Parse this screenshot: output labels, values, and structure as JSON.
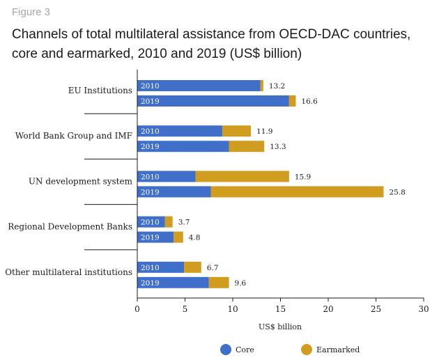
{
  "figure_label": "Figure 3",
  "title_line1": "Channels of total multilateral assistance from OECD-DAC countries,",
  "title_line2": "core and earmarked, 2010 and 2019 (US$ billion)",
  "colors": {
    "core": "#3f6fc9",
    "earmarked": "#d19d20",
    "axis": "#1a1a1a",
    "bar_text": "#ffffff"
  },
  "chart_data": {
    "type": "bar",
    "orientation": "horizontal",
    "stacked": true,
    "xlabel": "US$ billion",
    "xlim": [
      0,
      30
    ],
    "xticks": [
      0,
      5,
      10,
      15,
      20,
      25,
      30
    ],
    "grid": false,
    "legend_position": "bottom",
    "series_names": [
      "Core",
      "Earmarked"
    ],
    "categories": [
      {
        "name": "EU Institutions",
        "bars": [
          {
            "year": "2010",
            "core": 12.9,
            "earmarked": 0.3,
            "total_label": "13.2"
          },
          {
            "year": "2019",
            "core": 15.9,
            "earmarked": 0.7,
            "total_label": "16.6"
          }
        ]
      },
      {
        "name": "World Bank Group and IMF",
        "bars": [
          {
            "year": "2010",
            "core": 8.9,
            "earmarked": 3.0,
            "total_label": "11.9"
          },
          {
            "year": "2019",
            "core": 9.6,
            "earmarked": 3.7,
            "total_label": "13.3"
          }
        ]
      },
      {
        "name": "UN development system",
        "bars": [
          {
            "year": "2010",
            "core": 6.1,
            "earmarked": 9.8,
            "total_label": "15.9"
          },
          {
            "year": "2019",
            "core": 7.7,
            "earmarked": 18.1,
            "total_label": "25.8"
          }
        ]
      },
      {
        "name": "Regional Development Banks",
        "bars": [
          {
            "year": "2010",
            "core": 2.9,
            "earmarked": 0.8,
            "total_label": "3.7"
          },
          {
            "year": "2019",
            "core": 3.8,
            "earmarked": 1.0,
            "total_label": "4.8"
          }
        ]
      },
      {
        "name": "Other multilateral institutions",
        "bars": [
          {
            "year": "2010",
            "core": 4.9,
            "earmarked": 1.8,
            "total_label": "6.7"
          },
          {
            "year": "2019",
            "core": 7.5,
            "earmarked": 2.1,
            "total_label": "9.6"
          }
        ]
      }
    ]
  }
}
